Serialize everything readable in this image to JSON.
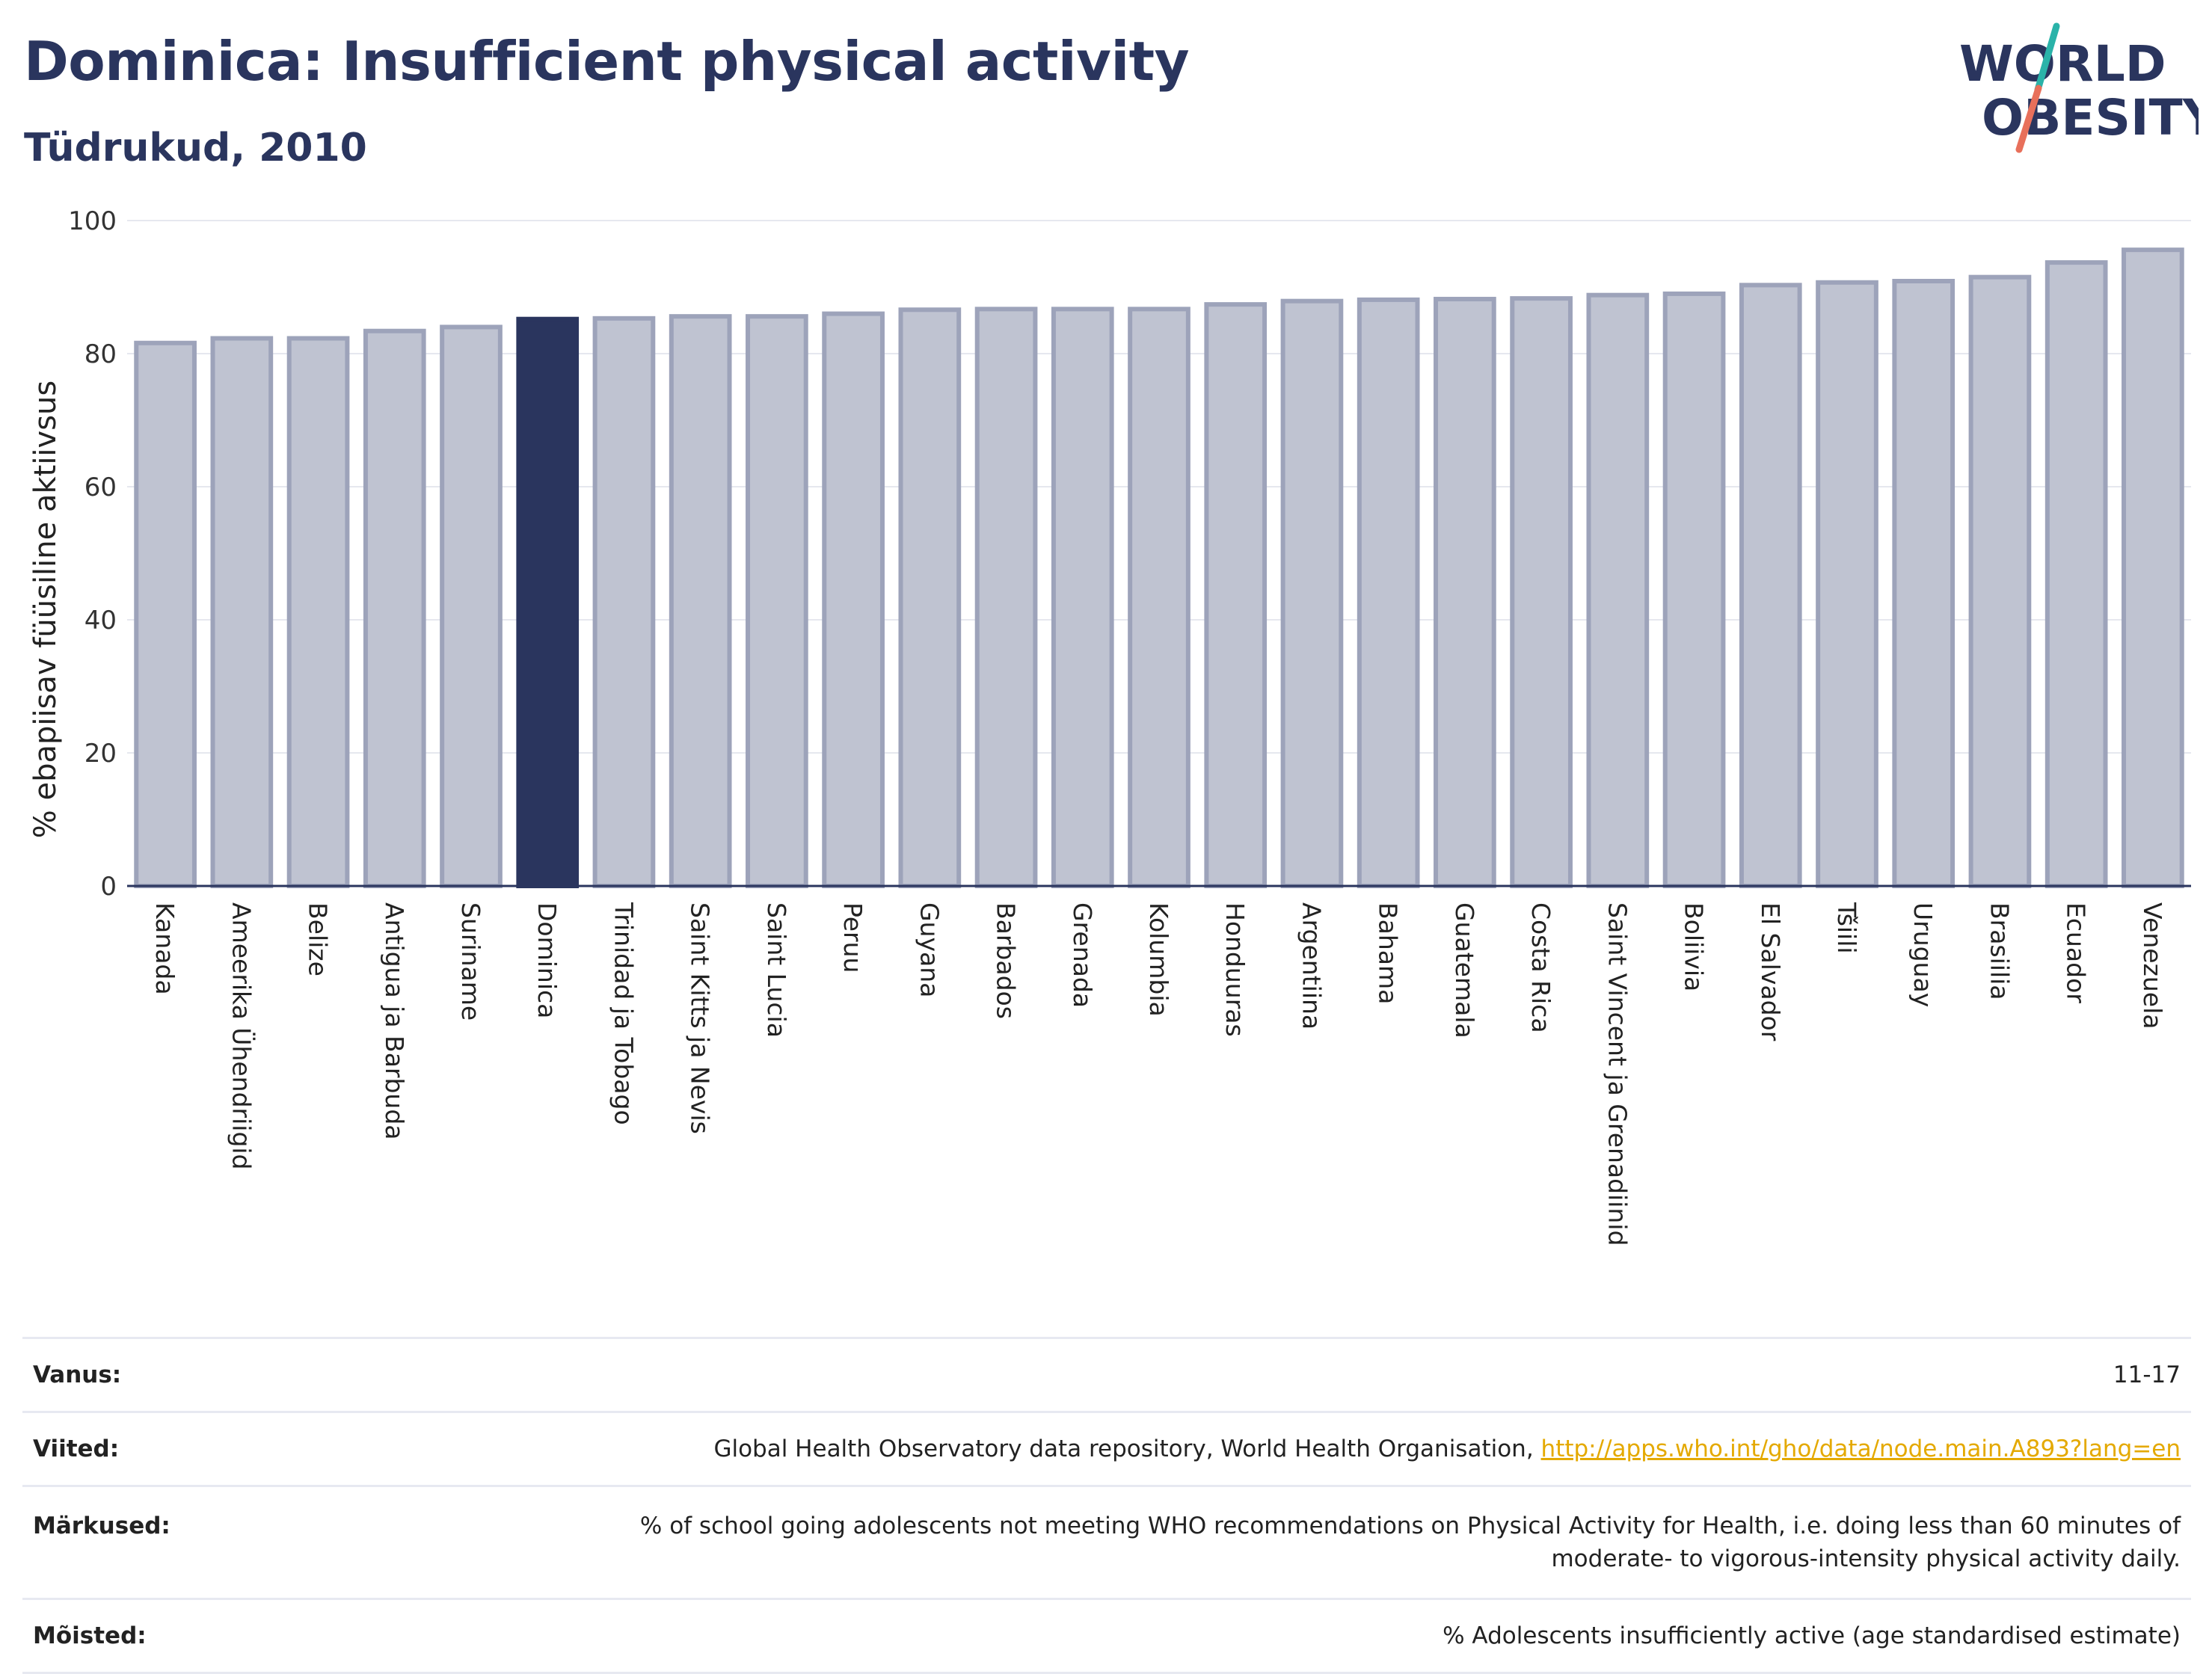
{
  "header": {
    "title": "Dominica: Insufficient physical activity",
    "subtitle": "Tüdrukud, 2010"
  },
  "logo": {
    "line1": "WORLD",
    "line2": "OBESITY",
    "colors": {
      "text": "#2a355e",
      "slash_teal": "#2ab3a9",
      "slash_coral": "#e8705b"
    }
  },
  "chart_data": {
    "type": "bar",
    "title": "Dominica: Insufficient physical activity",
    "subtitle": "Tüdrukud, 2010",
    "ylabel": "% ebapiisav füüsiline aktiivsus",
    "xlabel": "",
    "ylim": [
      0,
      100
    ],
    "yticks": [
      0,
      20,
      40,
      60,
      80,
      100
    ],
    "grid": true,
    "highlight": "Dominica",
    "colors": {
      "bar": "#bfc3d1",
      "bar_stroke": "#9da3ba",
      "highlight": "#2a355e"
    },
    "categories": [
      "Kanada",
      "Ameerika Ühendriigid",
      "Belize",
      "Antigua ja Barbuda",
      "Suriname",
      "Dominica",
      "Trinidad ja Tobago",
      "Saint Kitts ja Nevis",
      "Saint Lucia",
      "Peruu",
      "Guyana",
      "Barbados",
      "Grenada",
      "Kolumbia",
      "Honduuras",
      "Argentiina",
      "Bahama",
      "Guatemala",
      "Costa Rica",
      "Saint Vincent ja Grenadiinid",
      "Boliivia",
      "El Salvador",
      "Tšiili",
      "Uruguay",
      "Brasiilia",
      "Ecuador",
      "Venezuela"
    ],
    "values": [
      81.6,
      82.3,
      82.3,
      83.4,
      84.0,
      85.2,
      85.3,
      85.6,
      85.6,
      86.0,
      86.6,
      86.7,
      86.7,
      86.7,
      87.4,
      87.9,
      88.1,
      88.2,
      88.3,
      88.8,
      89.0,
      90.3,
      90.7,
      90.9,
      91.5,
      93.7,
      95.6
    ]
  },
  "info": {
    "rows": [
      {
        "label": "Vanus:",
        "value": "11-17"
      },
      {
        "label": "Viited:",
        "value": "Global Health Observatory data repository, World Health Organisation, ",
        "link": "http://apps.who.int/gho/data/node.main.A893?lang=en"
      },
      {
        "label": "Märkused:",
        "value": "% of school going adolescents not meeting WHO recommendations on Physical Activity for Health, i.e. doing less than 60 minutes of",
        "value2": "moderate- to vigorous-intensity physical activity daily."
      },
      {
        "label": "Mõisted:",
        "value": "% Adolescents insufficiently active (age standardised estimate)"
      }
    ]
  }
}
